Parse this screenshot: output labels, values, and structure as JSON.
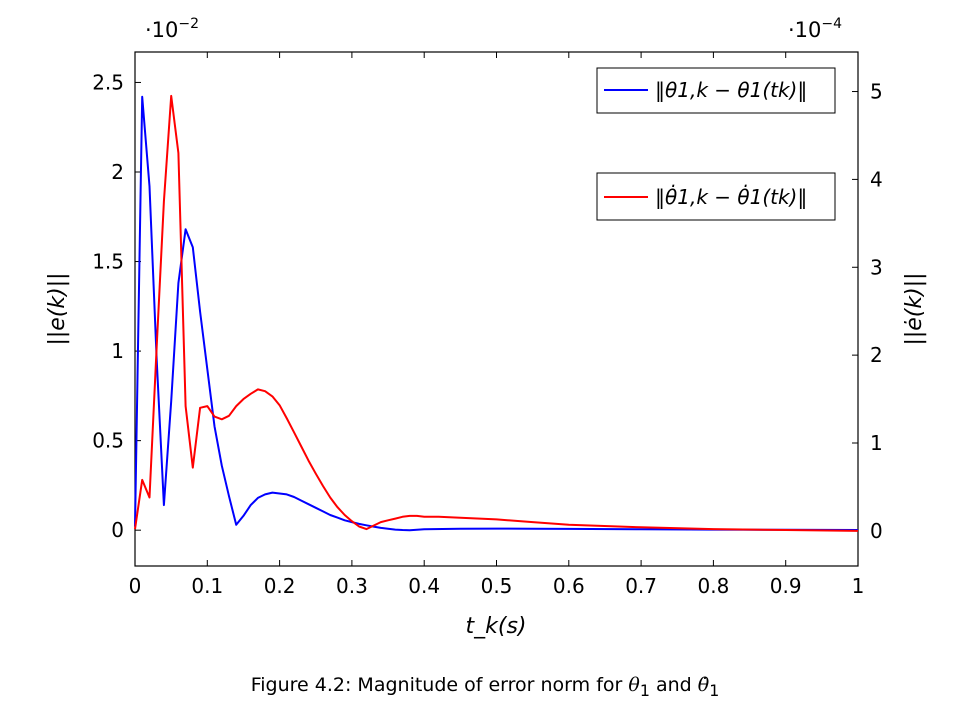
{
  "chart_data": {
    "type": "line",
    "xlabel": "t_k(s)",
    "ylabel_left": "||e(k)||",
    "ylabel_right": "||ė(k)||",
    "left_multiplier": "·10^−2",
    "right_multiplier": "·10^−4",
    "left_multiplier_base": "·10",
    "left_multiplier_exp": "−2",
    "right_multiplier_base": "·10",
    "right_multiplier_exp": "−4",
    "xlim": [
      0,
      1
    ],
    "ylim_left": [
      -0.2,
      2.67
    ],
    "ylim_right": [
      -0.4,
      5.45
    ],
    "x_ticks": [
      "0",
      "0.1",
      "0.2",
      "0.3",
      "0.4",
      "0.5",
      "0.6",
      "0.7",
      "0.8",
      "0.9",
      "1"
    ],
    "y_ticks_left": [
      "0",
      "0.5",
      "1",
      "1.5",
      "2",
      "2.5"
    ],
    "y_ticks_right": [
      "0",
      "1",
      "2",
      "3",
      "4",
      "5"
    ],
    "grid": false,
    "series": [
      {
        "name": "‖θ1,k − θ1(tk)‖",
        "color": "#0000ff",
        "axis": "left",
        "x": [
          0,
          0.01,
          0.02,
          0.03,
          0.04,
          0.05,
          0.06,
          0.07,
          0.08,
          0.09,
          0.1,
          0.11,
          0.12,
          0.13,
          0.14,
          0.15,
          0.16,
          0.17,
          0.18,
          0.19,
          0.2,
          0.21,
          0.22,
          0.23,
          0.24,
          0.25,
          0.26,
          0.27,
          0.28,
          0.29,
          0.3,
          0.31,
          0.32,
          0.33,
          0.34,
          0.35,
          0.36,
          0.37,
          0.38,
          0.39,
          0.4,
          0.45,
          0.5,
          0.55,
          0.6,
          0.7,
          0.8,
          0.9,
          1.0
        ],
        "y": [
          0.02,
          2.42,
          1.92,
          0.95,
          0.14,
          0.72,
          1.38,
          1.68,
          1.58,
          1.22,
          0.9,
          0.58,
          0.36,
          0.19,
          0.03,
          0.08,
          0.14,
          0.18,
          0.2,
          0.21,
          0.205,
          0.2,
          0.185,
          0.165,
          0.145,
          0.125,
          0.105,
          0.085,
          0.07,
          0.055,
          0.045,
          0.035,
          0.027,
          0.02,
          0.013,
          0.008,
          0.003,
          0.001,
          0.0,
          0.002,
          0.005,
          0.008,
          0.009,
          0.008,
          0.007,
          0.005,
          0.003,
          0.002,
          0.001
        ]
      },
      {
        "name": "‖θ̇1,k − θ̇1(tk)‖",
        "color": "#ff0000",
        "axis": "right",
        "x": [
          0,
          0.01,
          0.02,
          0.03,
          0.04,
          0.05,
          0.06,
          0.07,
          0.08,
          0.09,
          0.1,
          0.11,
          0.12,
          0.13,
          0.14,
          0.15,
          0.16,
          0.17,
          0.18,
          0.19,
          0.2,
          0.21,
          0.22,
          0.23,
          0.24,
          0.25,
          0.26,
          0.27,
          0.28,
          0.29,
          0.3,
          0.31,
          0.32,
          0.33,
          0.34,
          0.35,
          0.36,
          0.37,
          0.38,
          0.39,
          0.4,
          0.42,
          0.45,
          0.5,
          0.55,
          0.6,
          0.7,
          0.8,
          0.9,
          1.0
        ],
        "y": [
          0.02,
          0.58,
          0.38,
          2.1,
          3.75,
          4.95,
          4.3,
          1.42,
          0.72,
          1.4,
          1.42,
          1.3,
          1.27,
          1.31,
          1.42,
          1.5,
          1.56,
          1.61,
          1.59,
          1.53,
          1.43,
          1.28,
          1.12,
          0.96,
          0.8,
          0.65,
          0.51,
          0.38,
          0.27,
          0.18,
          0.11,
          0.05,
          0.02,
          0.06,
          0.1,
          0.12,
          0.14,
          0.16,
          0.17,
          0.17,
          0.16,
          0.16,
          0.15,
          0.13,
          0.1,
          0.07,
          0.04,
          0.02,
          0.01,
          0.0
        ]
      }
    ]
  },
  "caption": {
    "prefix": "Figure 4.2: Magnitude of error norm for ",
    "sym1": "θ",
    "sub1": "1",
    "mid": " and ",
    "sym2": "θ̇",
    "sub2": "1"
  }
}
